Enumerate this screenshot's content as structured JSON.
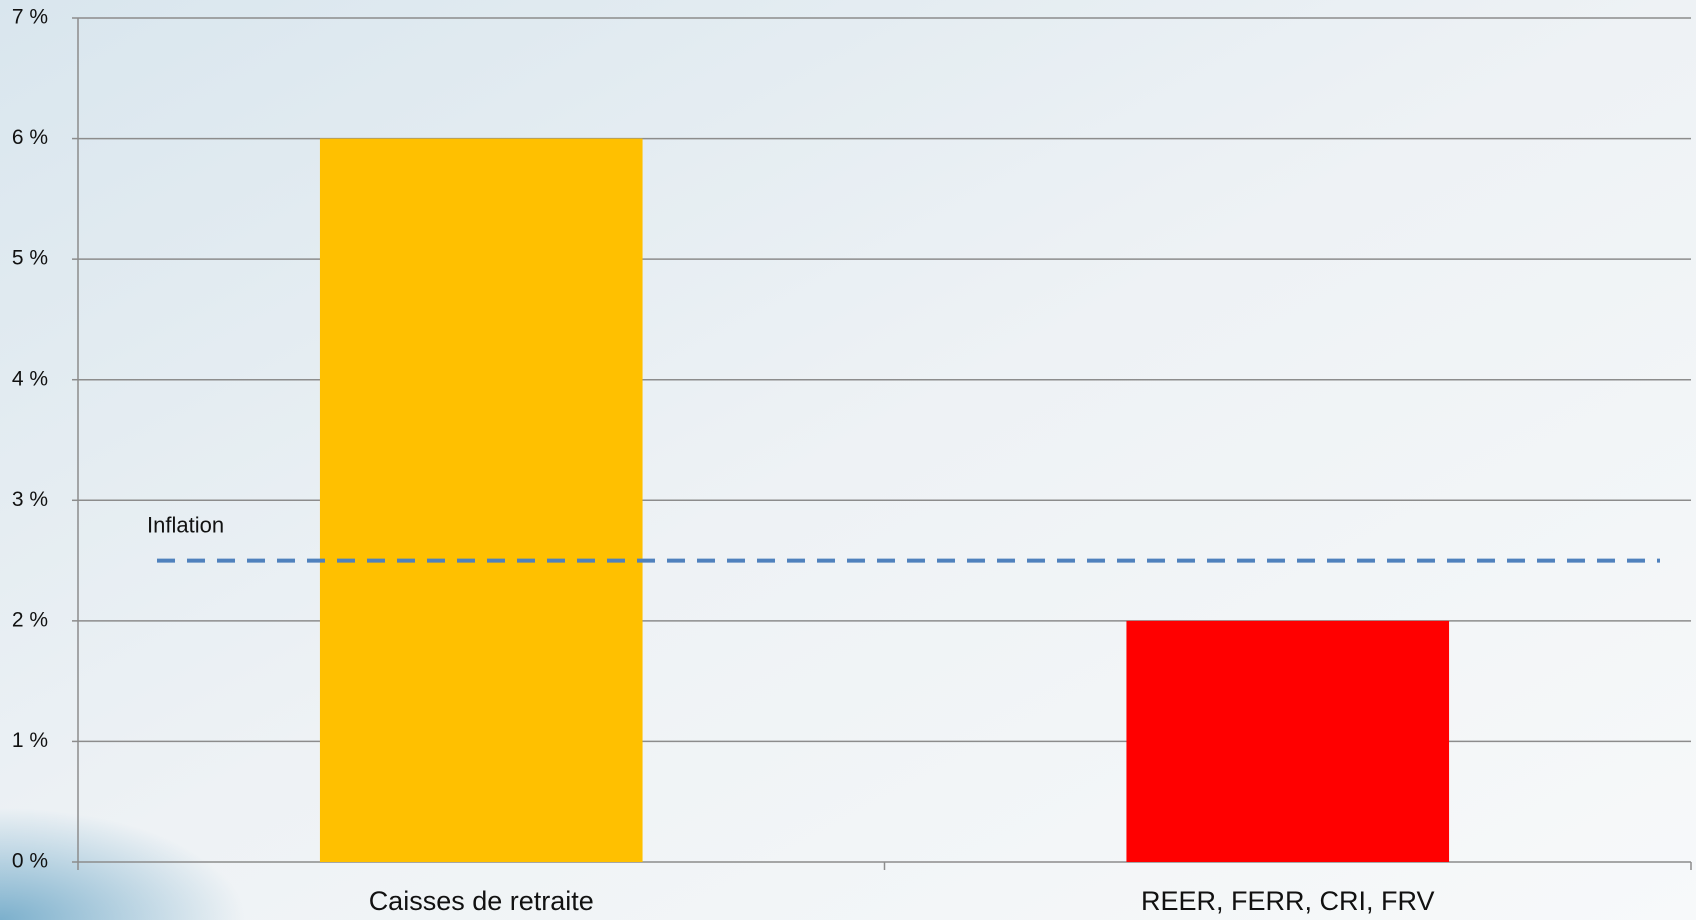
{
  "chart_data": {
    "type": "bar",
    "categories": [
      "Caisses de retraite",
      "REER, FERR, CRI, FRV"
    ],
    "values": [
      6,
      2
    ],
    "colors": [
      "#ffc000",
      "#ff0000"
    ],
    "ylim": [
      0,
      7
    ],
    "yticks": [
      {
        "value": 0,
        "label": "0 %"
      },
      {
        "value": 1,
        "label": "1 %"
      },
      {
        "value": 2,
        "label": "2 %"
      },
      {
        "value": 3,
        "label": "3 %"
      },
      {
        "value": 4,
        "label": "4 %"
      },
      {
        "value": 5,
        "label": "5 %"
      },
      {
        "value": 6,
        "label": "6 %"
      },
      {
        "value": 7,
        "label": "7 %"
      }
    ],
    "grid": true,
    "annotations": [
      {
        "text": "Inflation",
        "value": 2.5,
        "color": "#4f81bd",
        "dashed": true
      }
    ]
  }
}
